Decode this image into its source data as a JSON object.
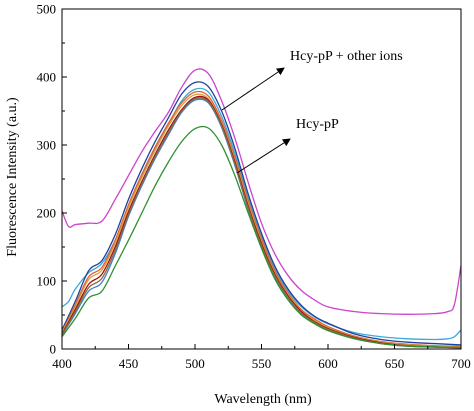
{
  "chart_data": {
    "type": "line",
    "title": "",
    "xlabel": "Wavelength (nm)",
    "ylabel": "Fluorescence Intensity (a.u.)",
    "xlim": [
      400,
      700
    ],
    "ylim": [
      0,
      500
    ],
    "xticks": [
      400,
      450,
      500,
      550,
      600,
      650,
      700
    ],
    "yticks": [
      0,
      100,
      200,
      300,
      400,
      500
    ],
    "grid": false,
    "legend": "none",
    "annotations": [
      {
        "text": "Hcy-pP + other ions",
        "points_to": "upper group of curves"
      },
      {
        "text": "Hcy-pP",
        "points_to": "lowest green curve"
      }
    ],
    "series": [
      {
        "color": "#cc44cc",
        "x": [
          400,
          405,
          410,
          420,
          430,
          440,
          450,
          460,
          470,
          480,
          490,
          500,
          510,
          520,
          530,
          540,
          550,
          560,
          570,
          580,
          590,
          600,
          620,
          640,
          660,
          680,
          690,
          695,
          700
        ],
        "y": [
          203,
          180,
          183,
          185,
          188,
          220,
          255,
          290,
          320,
          348,
          385,
          410,
          405,
          365,
          310,
          245,
          185,
          140,
          108,
          86,
          72,
          62,
          55,
          52,
          51,
          52,
          55,
          65,
          123
        ]
      },
      {
        "color": "#3aa8d8",
        "x": [
          400,
          405,
          410,
          420,
          430,
          440,
          450,
          460,
          470,
          480,
          490,
          500,
          510,
          520,
          530,
          540,
          550,
          560,
          570,
          580,
          590,
          600,
          620,
          640,
          660,
          680,
          690,
          695,
          700
        ],
        "y": [
          62,
          70,
          88,
          112,
          126,
          160,
          210,
          255,
          295,
          330,
          365,
          382,
          378,
          342,
          288,
          222,
          165,
          118,
          85,
          62,
          47,
          37,
          24,
          18,
          15,
          14,
          15,
          18,
          28
        ]
      },
      {
        "color": "#2040a0",
        "x": [
          400,
          410,
          420,
          430,
          440,
          450,
          460,
          470,
          480,
          490,
          500,
          510,
          520,
          530,
          540,
          550,
          560,
          570,
          580,
          590,
          600,
          620,
          640,
          660,
          680,
          700
        ],
        "y": [
          28,
          70,
          115,
          130,
          168,
          220,
          265,
          305,
          340,
          375,
          392,
          386,
          350,
          295,
          228,
          170,
          122,
          88,
          64,
          48,
          38,
          22,
          14,
          10,
          8,
          6
        ]
      },
      {
        "color": "#e06030",
        "x": [
          400,
          410,
          420,
          430,
          440,
          450,
          460,
          470,
          480,
          490,
          500,
          510,
          520,
          530,
          540,
          550,
          560,
          570,
          580,
          590,
          600,
          620,
          640,
          660,
          680,
          700
        ],
        "y": [
          25,
          65,
          106,
          120,
          160,
          212,
          257,
          297,
          332,
          362,
          378,
          372,
          336,
          282,
          218,
          162,
          115,
          82,
          58,
          44,
          33,
          19,
          11,
          7,
          5,
          4
        ]
      },
      {
        "color": "#d8a040",
        "x": [
          400,
          410,
          420,
          430,
          440,
          450,
          460,
          470,
          480,
          490,
          500,
          510,
          520,
          530,
          540,
          550,
          560,
          570,
          580,
          590,
          600,
          620,
          640,
          660,
          680,
          700
        ],
        "y": [
          24,
          62,
          102,
          116,
          156,
          208,
          252,
          292,
          328,
          358,
          374,
          368,
          332,
          278,
          214,
          158,
          112,
          80,
          56,
          42,
          31,
          18,
          10,
          6,
          4,
          3
        ]
      },
      {
        "color": "#a01010",
        "x": [
          400,
          410,
          420,
          430,
          440,
          450,
          460,
          470,
          480,
          490,
          500,
          510,
          520,
          530,
          540,
          550,
          560,
          570,
          580,
          590,
          600,
          620,
          640,
          660,
          680,
          700
        ],
        "y": [
          22,
          58,
          95,
          110,
          150,
          202,
          246,
          286,
          322,
          352,
          370,
          366,
          330,
          275,
          210,
          155,
          110,
          78,
          55,
          40,
          30,
          17,
          9,
          5,
          3,
          2
        ]
      },
      {
        "color": "#4080d0",
        "x": [
          400,
          410,
          420,
          430,
          440,
          450,
          460,
          470,
          480,
          490,
          500,
          510,
          520,
          530,
          540,
          550,
          560,
          570,
          580,
          590,
          600,
          620,
          640,
          660,
          680,
          700
        ],
        "y": [
          20,
          52,
          85,
          98,
          140,
          195,
          240,
          280,
          315,
          348,
          366,
          362,
          326,
          270,
          205,
          150,
          106,
          75,
          52,
          38,
          28,
          15,
          8,
          4,
          3,
          2
        ]
      },
      {
        "color": "#8a6a40",
        "x": [
          400,
          410,
          420,
          430,
          440,
          450,
          460,
          470,
          480,
          490,
          500,
          510,
          520,
          530,
          540,
          550,
          560,
          570,
          580,
          590,
          600,
          620,
          640,
          660,
          680,
          700
        ],
        "y": [
          21,
          55,
          90,
          104,
          145,
          198,
          243,
          283,
          318,
          350,
          368,
          364,
          328,
          272,
          207,
          152,
          108,
          76,
          53,
          39,
          29,
          16,
          8,
          5,
          3,
          2
        ]
      },
      {
        "color": "#309030",
        "x": [
          400,
          410,
          420,
          430,
          440,
          450,
          460,
          470,
          480,
          490,
          500,
          510,
          520,
          530,
          540,
          550,
          560,
          570,
          580,
          590,
          600,
          620,
          640,
          660,
          680,
          700
        ],
        "y": [
          18,
          45,
          75,
          85,
          122,
          160,
          200,
          240,
          275,
          305,
          324,
          325,
          300,
          255,
          200,
          148,
          103,
          72,
          50,
          37,
          27,
          15,
          8,
          4,
          3,
          2
        ]
      }
    ]
  }
}
